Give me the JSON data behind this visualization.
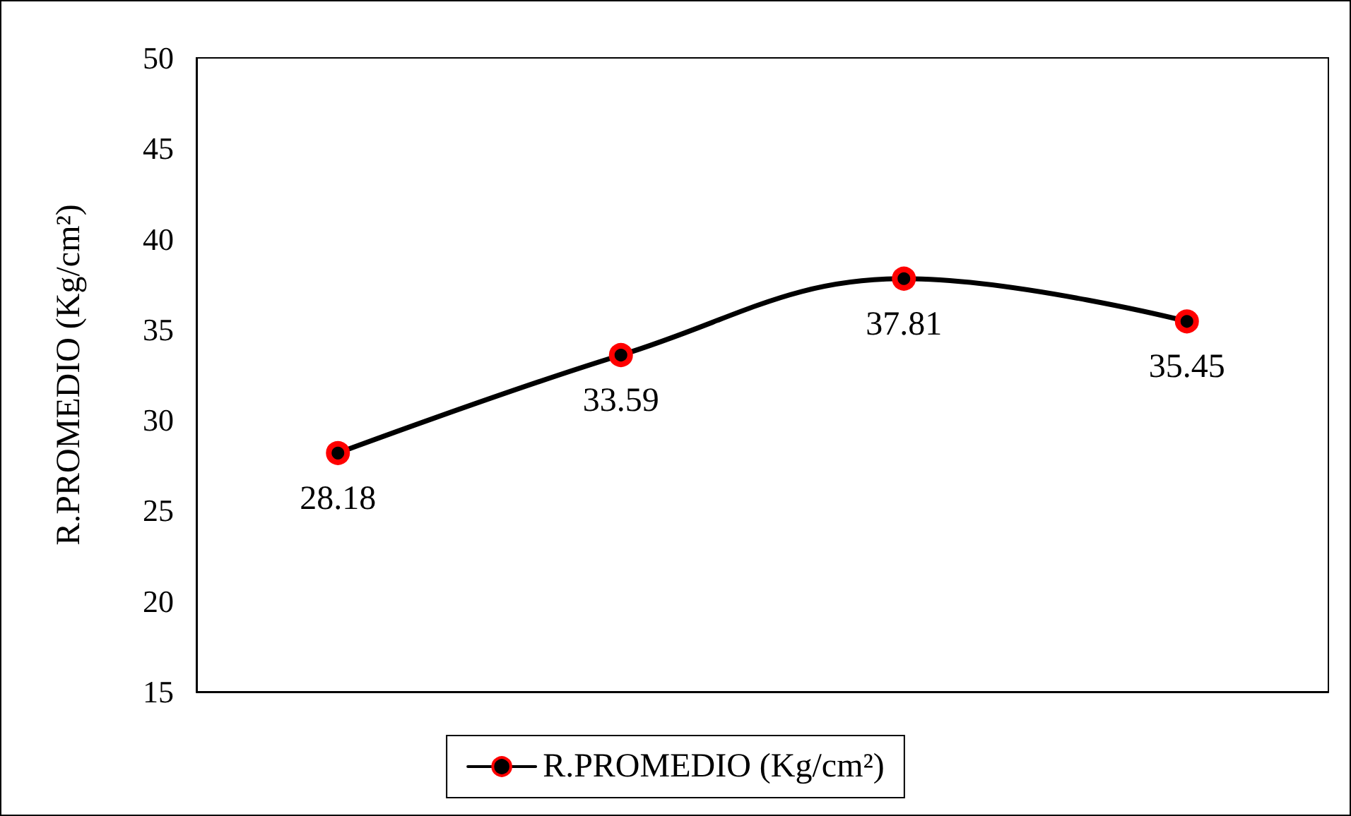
{
  "chart_data": {
    "type": "line",
    "ylabel": "R.PROMEDIO (Kg/cm²)",
    "categories": [
      null,
      null,
      null,
      null
    ],
    "series": [
      {
        "name": "R.PROMEDIO (Kg/cm²)",
        "color": "#000000",
        "values": [
          28.18,
          33.59,
          37.81,
          35.45
        ]
      }
    ],
    "ylim": [
      15,
      50
    ],
    "yticks": [
      15,
      20,
      25,
      30,
      35,
      40,
      45,
      50
    ],
    "grid": false,
    "legend": "bottom",
    "marker": "circle",
    "line_style": "solid",
    "data_labels": true
  }
}
